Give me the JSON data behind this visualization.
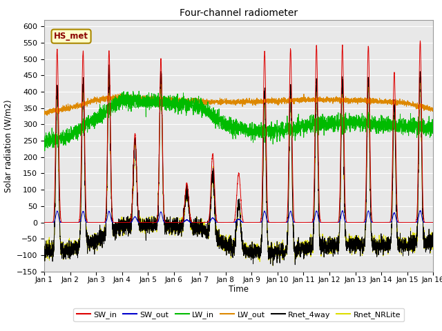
{
  "title": "Four-channel radiometer",
  "ylabel": "Solar radiation (W/m2)",
  "xlabel": "Time",
  "annotation": "HS_met",
  "ylim": [
    -150,
    620
  ],
  "yticks": [
    -150,
    -100,
    -50,
    0,
    50,
    100,
    150,
    200,
    250,
    300,
    350,
    400,
    450,
    500,
    550,
    600
  ],
  "x_labels": [
    "Jan 1",
    "Jan 2",
    "Jan 3",
    "Jan 4",
    "Jan 5",
    "Jan 6",
    "Jan 7",
    "Jan 8",
    "Jan 9",
    "Jan 10",
    "Jan 11",
    "Jan 12",
    "Jan 13",
    "Jan 14",
    "Jan 15",
    "Jan 16"
  ],
  "colors": {
    "SW_in": "#dd0000",
    "SW_out": "#0000cc",
    "LW_in": "#00bb00",
    "LW_out": "#dd8800",
    "Rnet_4way": "#000000",
    "Rnet_NRLite": "#dddd00"
  },
  "bg_color": "#e8e8e8",
  "grid_color": "#ffffff",
  "fig_bg": "#ffffff"
}
